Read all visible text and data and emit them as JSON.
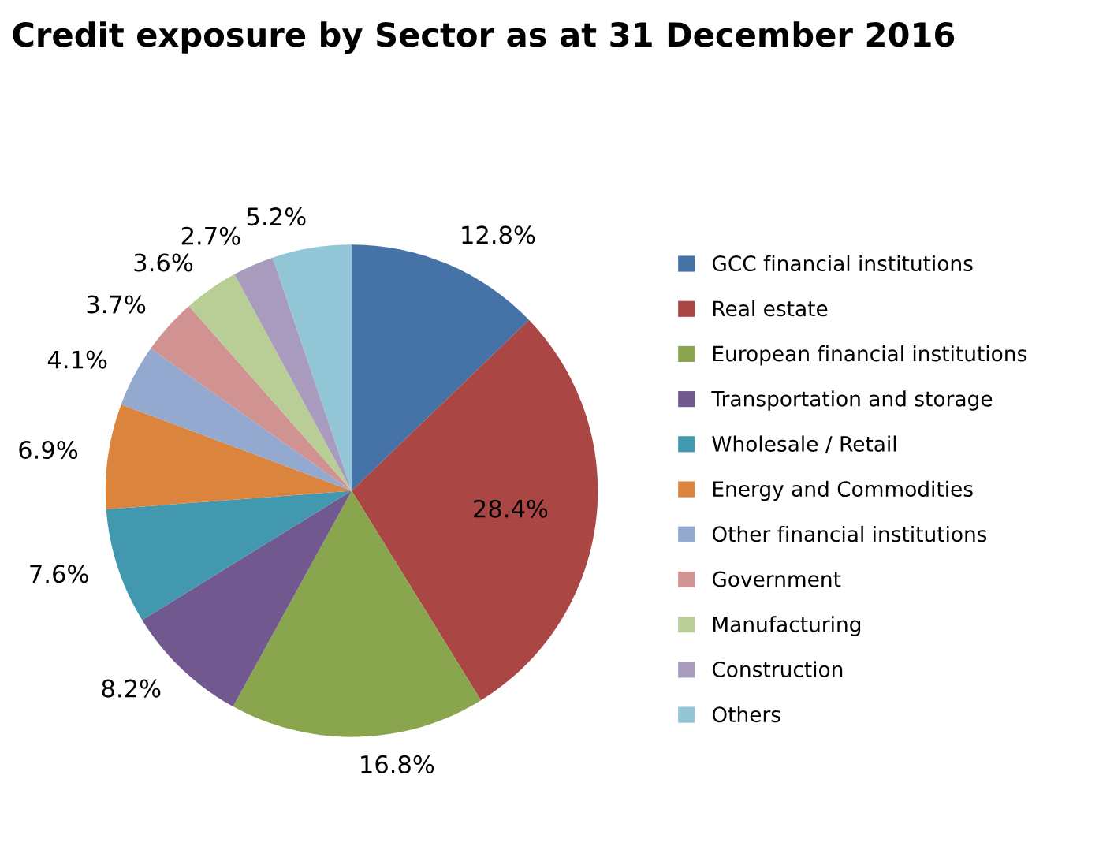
{
  "chart_data": {
    "type": "pie",
    "title": "Credit exposure by Sector as at 31 December 2016",
    "categories": [
      "GCC financial institutions",
      "Real estate",
      "European financial institutions",
      "Transportation and storage",
      "Wholesale / Retail",
      "Energy and Commodities",
      "Other financial institutions",
      "Government",
      "Manufacturing",
      "Construction",
      "Others"
    ],
    "values": [
      12.8,
      28.4,
      16.8,
      8.2,
      7.6,
      6.9,
      4.1,
      3.7,
      3.6,
      2.7,
      5.2
    ],
    "value_labels": [
      "12.8%",
      "28.4%",
      "16.8%",
      "8.2%",
      "7.6%",
      "6.9%",
      "4.1%",
      "3.7%",
      "3.6%",
      "2.7%",
      "5.2%"
    ],
    "colors": [
      "#4572a7",
      "#aa4643",
      "#89a54e",
      "#71588f",
      "#4198af",
      "#db843d",
      "#93a9cf",
      "#d19392",
      "#b9cd96",
      "#a99bbd",
      "#92c5d6"
    ],
    "legend": "right"
  }
}
